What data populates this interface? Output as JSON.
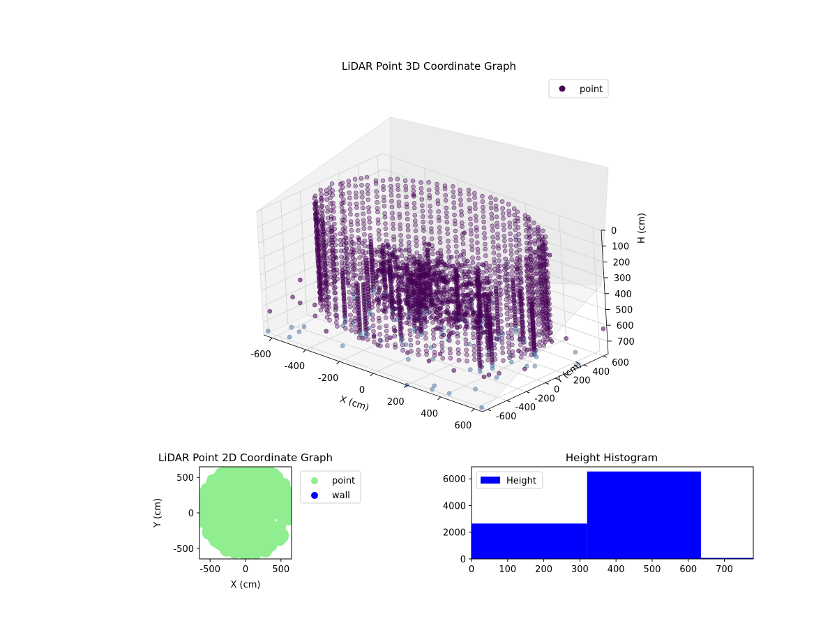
{
  "chart_data": [
    {
      "type": "scatter",
      "title": "LiDAR Point 3D Coordinate Graph",
      "xlabel": "X (cm)",
      "ylabel": "Y (cm)",
      "zlabel": "H (cm)",
      "xlim": [
        -650,
        650
      ],
      "ylim": [
        -650,
        650
      ],
      "zlim": [
        0,
        780
      ],
      "z_inverted": true,
      "x_ticks": [
        -600,
        -400,
        -200,
        0,
        200,
        400,
        600
      ],
      "y_ticks": [
        -600,
        -400,
        -200,
        0,
        200,
        400,
        600
      ],
      "z_ticks": [
        0,
        100,
        200,
        300,
        400,
        500,
        600,
        700
      ],
      "grid": true,
      "legend": {
        "position": "top-right",
        "entries": [
          "point"
        ]
      },
      "series": [
        {
          "name": "point",
          "color": "#440154",
          "structure": "cylindrical wall of points, radius ~600 cm, heights 0-630 cm, with dense core near the origin and scattered outliers",
          "sample_points": [
            [
              -620,
              -300,
              520
            ],
            [
              -550,
              200,
              380
            ],
            [
              -480,
              -520,
              700
            ],
            [
              -420,
              560,
              150
            ],
            [
              -300,
              -600,
              640
            ],
            [
              -150,
              600,
              300
            ],
            [
              0,
              -620,
              550
            ],
            [
              150,
              610,
              420
            ],
            [
              300,
              -580,
              610
            ],
            [
              420,
              500,
              200
            ],
            [
              520,
              -350,
              680
            ],
            [
              600,
              150,
              330
            ],
            [
              610,
              -100,
              560
            ],
            [
              -610,
              50,
              470
            ],
            [
              -50,
              40,
              420
            ],
            [
              30,
              -60,
              500
            ],
            [
              -120,
              90,
              600
            ],
            [
              80,
              120,
              350
            ],
            [
              -640,
              -620,
              760
            ],
            [
              640,
              -640,
              760
            ],
            [
              -500,
              -640,
              740
            ],
            [
              200,
              -650,
              780
            ]
          ]
        }
      ]
    },
    {
      "type": "scatter",
      "title": "LiDAR Point 2D Coordinate Graph",
      "xlabel": "X (cm)",
      "ylabel": "Y (cm)",
      "xlim": [
        -650,
        650
      ],
      "ylim": [
        -650,
        650
      ],
      "x_ticks": [
        -500,
        0,
        500
      ],
      "y_ticks": [
        -500,
        0,
        500
      ],
      "legend": {
        "position": "outside-right",
        "entries": [
          "point",
          "wall"
        ]
      },
      "series": [
        {
          "name": "point",
          "color": "#90ee90",
          "structure": "filled disc of points radius ~650 cm covering most of the axes"
        },
        {
          "name": "wall",
          "color": "#0000ff",
          "values": []
        }
      ]
    },
    {
      "type": "bar",
      "title": "Height Histogram",
      "xlim": [
        0,
        780
      ],
      "ylim": [
        0,
        6900
      ],
      "x_ticks": [
        0,
        100,
        200,
        300,
        400,
        500,
        600,
        700
      ],
      "y_ticks": [
        0,
        2000,
        4000,
        6000
      ],
      "legend": {
        "position": "top-left",
        "entries": [
          "Height"
        ]
      },
      "bins": [
        {
          "from": 0,
          "to": 320,
          "count": 2650
        },
        {
          "from": 320,
          "to": 635,
          "count": 6550
        },
        {
          "from": 635,
          "to": 780,
          "count": 80
        }
      ],
      "series": [
        {
          "name": "Height",
          "color": "#0000ff"
        }
      ]
    }
  ]
}
